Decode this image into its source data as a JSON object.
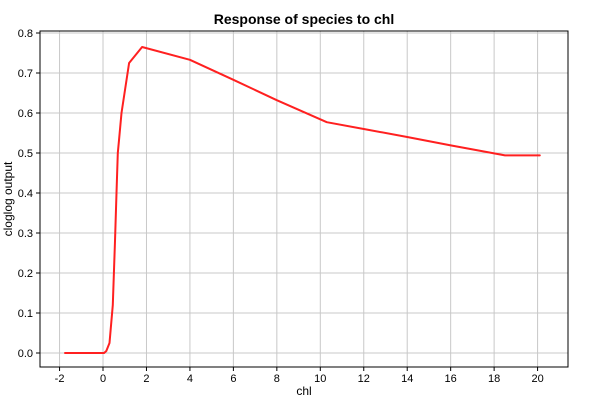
{
  "chart_data": {
    "type": "line",
    "title": "Response of species to chl",
    "xlabel": "chl",
    "ylabel": "cloglog output",
    "xlim": [
      -2.9,
      21.4
    ],
    "ylim": [
      -0.035,
      0.805
    ],
    "x_ticks": [
      -2,
      0,
      2,
      4,
      6,
      8,
      10,
      12,
      14,
      16,
      18,
      20
    ],
    "y_ticks": [
      0.0,
      0.1,
      0.2,
      0.3,
      0.4,
      0.5,
      0.6,
      0.7,
      0.8
    ],
    "x_tick_labels": [
      "-2",
      "0",
      "2",
      "4",
      "6",
      "8",
      "10",
      "12",
      "14",
      "16",
      "18",
      "20"
    ],
    "y_tick_labels": [
      "0.0",
      "0.1",
      "0.2",
      "0.3",
      "0.4",
      "0.5",
      "0.6",
      "0.7",
      "0.8"
    ],
    "grid": true,
    "series": [
      {
        "color": "#ff2020",
        "x": [
          -1.75,
          0.05,
          0.15,
          0.3,
          0.45,
          0.55,
          0.62,
          0.68,
          0.75,
          0.85,
          1.2,
          1.8,
          4.0,
          6.0,
          8.0,
          10.3,
          12.0,
          14.0,
          16.0,
          18.5,
          20.1
        ],
        "y": [
          0.0,
          0.0,
          0.005,
          0.025,
          0.12,
          0.28,
          0.4,
          0.5,
          0.54,
          0.6,
          0.725,
          0.765,
          0.733,
          0.683,
          0.632,
          0.577,
          0.56,
          0.54,
          0.519,
          0.494,
          0.494
        ]
      }
    ]
  }
}
